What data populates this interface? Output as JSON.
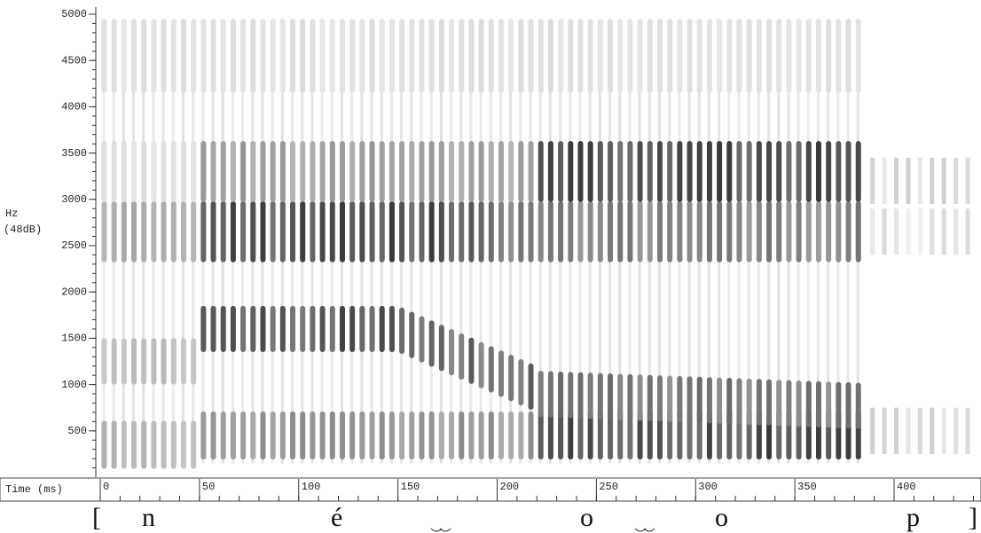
{
  "chart_data": {
    "type": "spectrogram",
    "y_label": "Hz",
    "y_label_2": "(48dB)",
    "x_label": "Time (ms)",
    "ylim": [
      0,
      5000
    ],
    "yticks": [
      500,
      1000,
      1500,
      2000,
      2500,
      3000,
      3500,
      4000,
      4500,
      5000
    ],
    "yminorticks": [
      100,
      200,
      300,
      400,
      500,
      600,
      700,
      800,
      900,
      1000,
      1100,
      1200,
      1300,
      1400,
      1500,
      1600,
      1700,
      1800,
      1900,
      2000,
      2100,
      2200,
      2300,
      2400,
      2500,
      2600,
      2700,
      2800,
      2900,
      3000,
      3100,
      3200,
      3300,
      3400,
      3500,
      3600,
      3700,
      3800,
      3900,
      4000,
      4100,
      4200,
      4300,
      4400,
      4500,
      4600,
      4700,
      4800,
      4900,
      5000
    ],
    "xlim": [
      0,
      440
    ],
    "xticks": [
      0,
      50,
      100,
      150,
      200,
      250,
      300,
      350,
      400
    ],
    "xminorticks": [
      0,
      10,
      20,
      30,
      40,
      50,
      60,
      70,
      80,
      90,
      100,
      110,
      120,
      130,
      140,
      150,
      160,
      170,
      180,
      190,
      200,
      210,
      220,
      230,
      240,
      250,
      260,
      270,
      280,
      290,
      300,
      310,
      320,
      330,
      340,
      350,
      360,
      370,
      380,
      390,
      400,
      410,
      420,
      430,
      440
    ],
    "transcription": [
      "[",
      "n",
      "é",
      "o",
      "o",
      "p",
      "]"
    ]
  }
}
